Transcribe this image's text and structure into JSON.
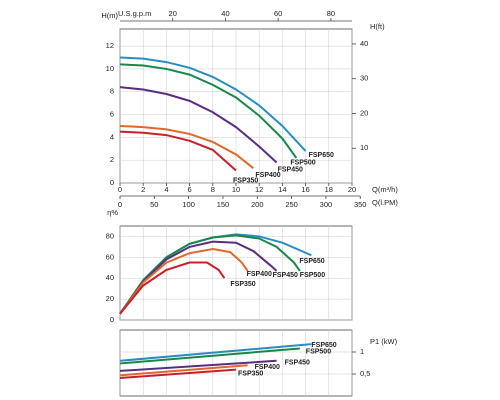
{
  "chart_data": [
    {
      "type": "line",
      "xlabel": "Q(m³/h)",
      "x2label": "Q(l.PM)",
      "x3label": "U.S.g.p.m",
      "ylabel": "H(m)",
      "y2label": "H(ft)",
      "xlim": [
        0,
        20
      ],
      "xticks": [
        0,
        2,
        4,
        6,
        8,
        10,
        12,
        14,
        16,
        18,
        20
      ],
      "x2lim": [
        0,
        338
      ],
      "x2ticks": [
        0,
        50,
        100,
        150,
        200,
        250,
        300,
        350
      ],
      "x3lim": [
        0,
        88
      ],
      "x3ticks": [
        20,
        40,
        60,
        80
      ],
      "ylim": [
        0,
        13.5
      ],
      "yticks": [
        0,
        2,
        4,
        6,
        8,
        10,
        12
      ],
      "y2lim": [
        0,
        44.3
      ],
      "y2ticks": [
        10,
        20,
        30,
        40
      ],
      "grid": true,
      "series": [
        {
          "name": "FSP650",
          "color": "#2b8cc4",
          "x": [
            0,
            2,
            4,
            6,
            8,
            10,
            12,
            14,
            16
          ],
          "values": [
            11.0,
            10.9,
            10.6,
            10.1,
            9.3,
            8.2,
            6.8,
            5.0,
            2.8
          ]
        },
        {
          "name": "FSP500",
          "color": "#17884a",
          "x": [
            0,
            2,
            4,
            6,
            8,
            10,
            12,
            14,
            15.2
          ],
          "values": [
            10.4,
            10.3,
            10.0,
            9.5,
            8.6,
            7.5,
            5.9,
            3.9,
            2.2
          ]
        },
        {
          "name": "FSP450",
          "color": "#5a2d82",
          "x": [
            0,
            2,
            4,
            6,
            8,
            10,
            12,
            13.5
          ],
          "values": [
            8.4,
            8.2,
            7.8,
            7.2,
            6.2,
            4.9,
            3.2,
            1.8
          ]
        },
        {
          "name": "FSP400",
          "color": "#e0682a",
          "x": [
            0,
            2,
            4,
            6,
            8,
            10,
            11.5
          ],
          "values": [
            5.0,
            4.9,
            4.7,
            4.3,
            3.6,
            2.5,
            1.3
          ]
        },
        {
          "name": "FSP350",
          "color": "#c8202a",
          "x": [
            0,
            2,
            4,
            6,
            8,
            10
          ],
          "values": [
            4.5,
            4.4,
            4.2,
            3.7,
            2.9,
            1.1
          ]
        }
      ]
    },
    {
      "type": "line",
      "ylabel": "η%",
      "xlim": [
        0,
        20
      ],
      "ylim": [
        0,
        90
      ],
      "yticks": [
        0,
        20,
        40,
        60,
        80
      ],
      "grid": true,
      "series": [
        {
          "name": "FSP650",
          "color": "#2b8cc4",
          "x": [
            0,
            2,
            4,
            6,
            8,
            10,
            12,
            14,
            16.5
          ],
          "values": [
            6,
            38,
            60,
            73,
            79,
            82,
            80,
            74,
            62
          ]
        },
        {
          "name": "FSP500",
          "color": "#17884a",
          "x": [
            0,
            2,
            4,
            6,
            8,
            10,
            12,
            13.5,
            15,
            15.5
          ],
          "values": [
            6,
            38,
            60,
            73,
            79,
            81,
            78,
            70,
            55,
            47
          ]
        },
        {
          "name": "FSP450",
          "color": "#5a2d82",
          "x": [
            0,
            2,
            4,
            6,
            8,
            10,
            11.5,
            13,
            13.5
          ],
          "values": [
            6,
            37,
            58,
            70,
            75,
            74,
            66,
            52,
            47
          ]
        },
        {
          "name": "FSP400",
          "color": "#e0682a",
          "x": [
            0,
            2,
            4,
            6,
            8,
            9.5,
            10.5,
            11
          ],
          "values": [
            6,
            36,
            55,
            64,
            68,
            65,
            55,
            47
          ]
        },
        {
          "name": "FSP350",
          "color": "#c8202a",
          "x": [
            0,
            2,
            4,
            6,
            7.5,
            8.5,
            9
          ],
          "values": [
            6,
            33,
            48,
            55,
            55,
            48,
            40
          ]
        }
      ]
    },
    {
      "type": "line",
      "y2label": "P1 (kW)",
      "xlim": [
        0,
        20
      ],
      "y2lim": [
        0,
        1.5
      ],
      "y2ticks": [
        {
          "value": 0.5,
          "label": "0,5"
        },
        1
      ],
      "grid": true,
      "series": [
        {
          "name": "FSP650",
          "color": "#2b8cc4",
          "axis": "y2",
          "x": [
            0,
            16.5
          ],
          "values": [
            0.8,
            1.18
          ]
        },
        {
          "name": "FSP500",
          "color": "#17884a",
          "axis": "y2",
          "x": [
            0,
            15.5
          ],
          "values": [
            0.74,
            1.08
          ]
        },
        {
          "name": "FSP450",
          "color": "#5a2d82",
          "axis": "y2",
          "x": [
            0,
            13.5
          ],
          "values": [
            0.57,
            0.8
          ]
        },
        {
          "name": "FSP400",
          "color": "#e0682a",
          "axis": "y2",
          "x": [
            0,
            11
          ],
          "values": [
            0.47,
            0.7
          ]
        },
        {
          "name": "FSP350",
          "color": "#c8202a",
          "axis": "y2",
          "x": [
            0,
            10
          ],
          "values": [
            0.41,
            0.6
          ]
        }
      ]
    }
  ]
}
